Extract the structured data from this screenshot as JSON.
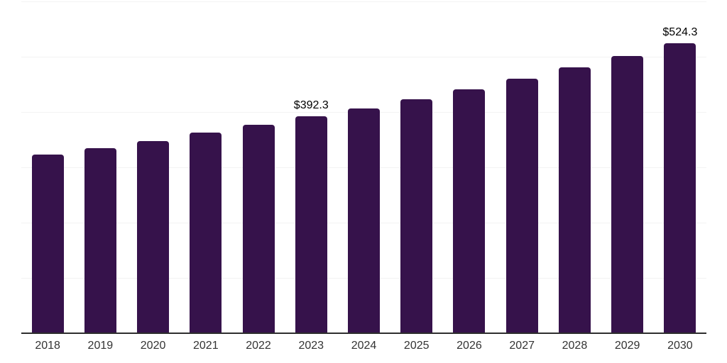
{
  "chart_data": {
    "type": "bar",
    "title": "",
    "xlabel": "",
    "ylabel": "",
    "categories": [
      "2018",
      "2019",
      "2020",
      "2021",
      "2022",
      "2023",
      "2024",
      "2025",
      "2026",
      "2027",
      "2028",
      "2029",
      "2030"
    ],
    "values": [
      323.2,
      334.1,
      347.8,
      362.9,
      377.2,
      392.3,
      406.9,
      423.4,
      441.6,
      460.5,
      480.8,
      501.3,
      524.3
    ],
    "bar_labels": [
      "",
      "",
      "",
      "",
      "",
      "$392.3",
      "",
      "",
      "",
      "",
      "",
      "",
      "$524.3"
    ],
    "ylim": [
      0,
      600
    ],
    "grid_interval": 100,
    "grid": "horizontal-only",
    "legend": "none",
    "y_tick_labels_visible": false,
    "colors": {
      "bar": "#36124B",
      "axis_line": "#2E2E2E",
      "gridline": "#F3F3F3",
      "tick_label": "#333333",
      "data_label": "#000000",
      "background": "#FFFFFF"
    }
  }
}
